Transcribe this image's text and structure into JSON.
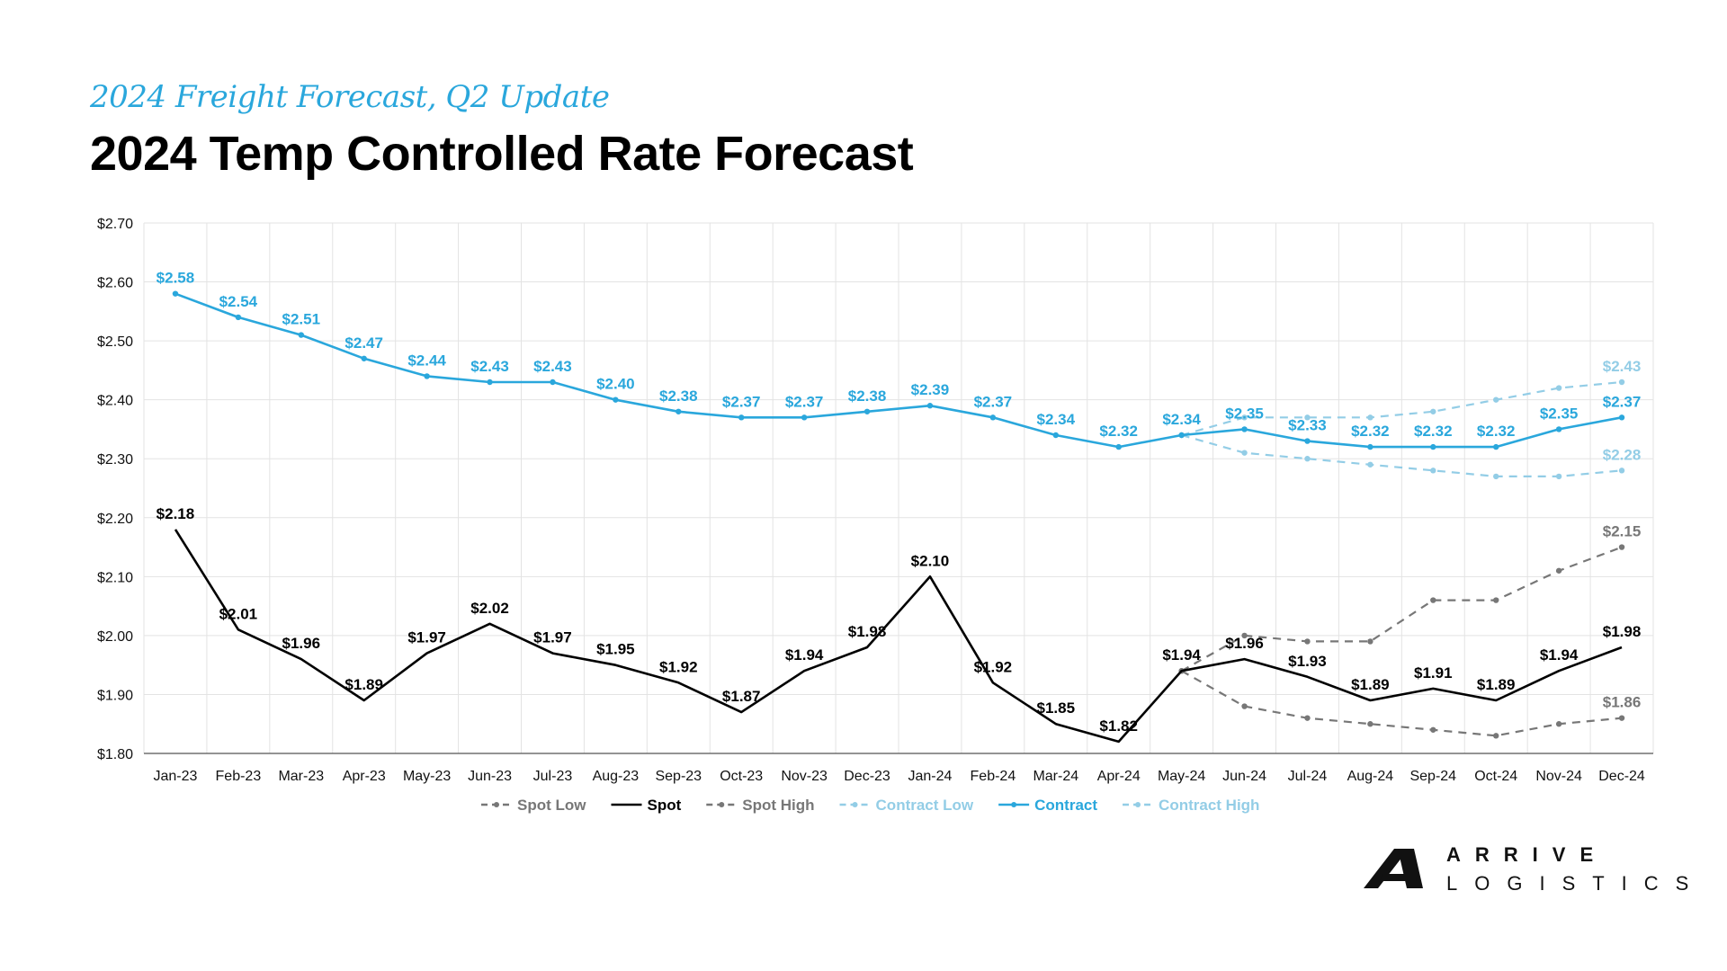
{
  "header": {
    "subtitle": "2024 Freight Forecast, Q2 Update",
    "title": "2024 Temp Controlled Rate Forecast"
  },
  "logo": {
    "top": "ARRIVE",
    "bottom": "LOGISTICS"
  },
  "chart_data": {
    "type": "line",
    "categories": [
      "Jan-23",
      "Feb-23",
      "Mar-23",
      "Apr-23",
      "May-23",
      "Jun-23",
      "Jul-23",
      "Aug-23",
      "Sep-23",
      "Oct-23",
      "Nov-23",
      "Dec-23",
      "Jan-24",
      "Feb-24",
      "Mar-24",
      "Apr-24",
      "May-24",
      "Jun-24",
      "Jul-24",
      "Aug-24",
      "Sep-24",
      "Oct-24",
      "Nov-24",
      "Dec-24"
    ],
    "ylim": [
      1.8,
      2.7
    ],
    "yticks": [
      "$1.80",
      "$1.90",
      "$2.00",
      "$2.10",
      "$2.20",
      "$2.30",
      "$2.40",
      "$2.50",
      "$2.60",
      "$2.70"
    ],
    "grid": true,
    "legend_position": "bottom",
    "series": [
      {
        "name": "Spot Low",
        "color": "#777777",
        "dashed": true,
        "values": [
          null,
          null,
          null,
          null,
          null,
          null,
          null,
          null,
          null,
          null,
          null,
          null,
          null,
          null,
          null,
          null,
          1.94,
          1.88,
          1.86,
          1.85,
          1.84,
          1.83,
          1.85,
          1.86
        ],
        "labels": [
          null,
          null,
          null,
          null,
          null,
          null,
          null,
          null,
          null,
          null,
          null,
          null,
          null,
          null,
          null,
          null,
          null,
          null,
          null,
          null,
          null,
          null,
          null,
          "$1.86"
        ]
      },
      {
        "name": "Spot",
        "color": "#000000",
        "dashed": false,
        "values": [
          2.18,
          2.01,
          1.96,
          1.89,
          1.97,
          2.02,
          1.97,
          1.95,
          1.92,
          1.87,
          1.94,
          1.98,
          2.1,
          1.92,
          1.85,
          1.82,
          1.94,
          1.96,
          1.93,
          1.89,
          1.91,
          1.89,
          1.94,
          1.98
        ],
        "labels": [
          "$2.18",
          "$2.01",
          "$1.96",
          "$1.89",
          "$1.97",
          "$2.02",
          "$1.97",
          "$1.95",
          "$1.92",
          "$1.87",
          "$1.94",
          "$1.98",
          "$2.10",
          "$1.92",
          "$1.85",
          "$1.82",
          "$1.94",
          "$1.96",
          "$1.93",
          "$1.89",
          "$1.91",
          "$1.89",
          "$1.94",
          "$1.98"
        ]
      },
      {
        "name": "Spot High",
        "color": "#777777",
        "dashed": true,
        "values": [
          null,
          null,
          null,
          null,
          null,
          null,
          null,
          null,
          null,
          null,
          null,
          null,
          null,
          null,
          null,
          null,
          1.94,
          2.0,
          1.99,
          1.99,
          2.06,
          2.06,
          2.11,
          2.15
        ],
        "labels": [
          null,
          null,
          null,
          null,
          null,
          null,
          null,
          null,
          null,
          null,
          null,
          null,
          null,
          null,
          null,
          null,
          null,
          null,
          null,
          null,
          null,
          null,
          null,
          "$2.15"
        ]
      },
      {
        "name": "Contract Low",
        "color": "#93cde6",
        "dashed": true,
        "values": [
          null,
          null,
          null,
          null,
          null,
          null,
          null,
          null,
          null,
          null,
          null,
          null,
          null,
          null,
          null,
          null,
          2.34,
          2.31,
          2.3,
          2.29,
          2.28,
          2.27,
          2.27,
          2.28
        ],
        "labels": [
          null,
          null,
          null,
          null,
          null,
          null,
          null,
          null,
          null,
          null,
          null,
          null,
          null,
          null,
          null,
          null,
          null,
          null,
          null,
          null,
          null,
          null,
          null,
          "$2.28"
        ]
      },
      {
        "name": "Contract",
        "color": "#2aa7dc",
        "dashed": false,
        "values": [
          2.58,
          2.54,
          2.51,
          2.47,
          2.44,
          2.43,
          2.43,
          2.4,
          2.38,
          2.37,
          2.37,
          2.38,
          2.39,
          2.37,
          2.34,
          2.32,
          2.34,
          2.35,
          2.33,
          2.32,
          2.32,
          2.32,
          2.35,
          2.37
        ],
        "labels": [
          "$2.58",
          "$2.54",
          "$2.51",
          "$2.47",
          "$2.44",
          "$2.43",
          "$2.43",
          "$2.40",
          "$2.38",
          "$2.37",
          "$2.37",
          "$2.38",
          "$2.39",
          "$2.37",
          "$2.34",
          "$2.32",
          "$2.34",
          "$2.35",
          "$2.33",
          "$2.32",
          "$2.32",
          "$2.32",
          "$2.35",
          "$2.37"
        ]
      },
      {
        "name": "Contract High",
        "color": "#93cde6",
        "dashed": true,
        "values": [
          null,
          null,
          null,
          null,
          null,
          null,
          null,
          null,
          null,
          null,
          null,
          null,
          null,
          null,
          null,
          null,
          2.34,
          2.37,
          2.37,
          2.37,
          2.38,
          2.4,
          2.42,
          2.43
        ],
        "labels": [
          null,
          null,
          null,
          null,
          null,
          null,
          null,
          null,
          null,
          null,
          null,
          null,
          null,
          null,
          null,
          null,
          null,
          null,
          null,
          null,
          null,
          null,
          null,
          "$2.43"
        ]
      }
    ]
  }
}
